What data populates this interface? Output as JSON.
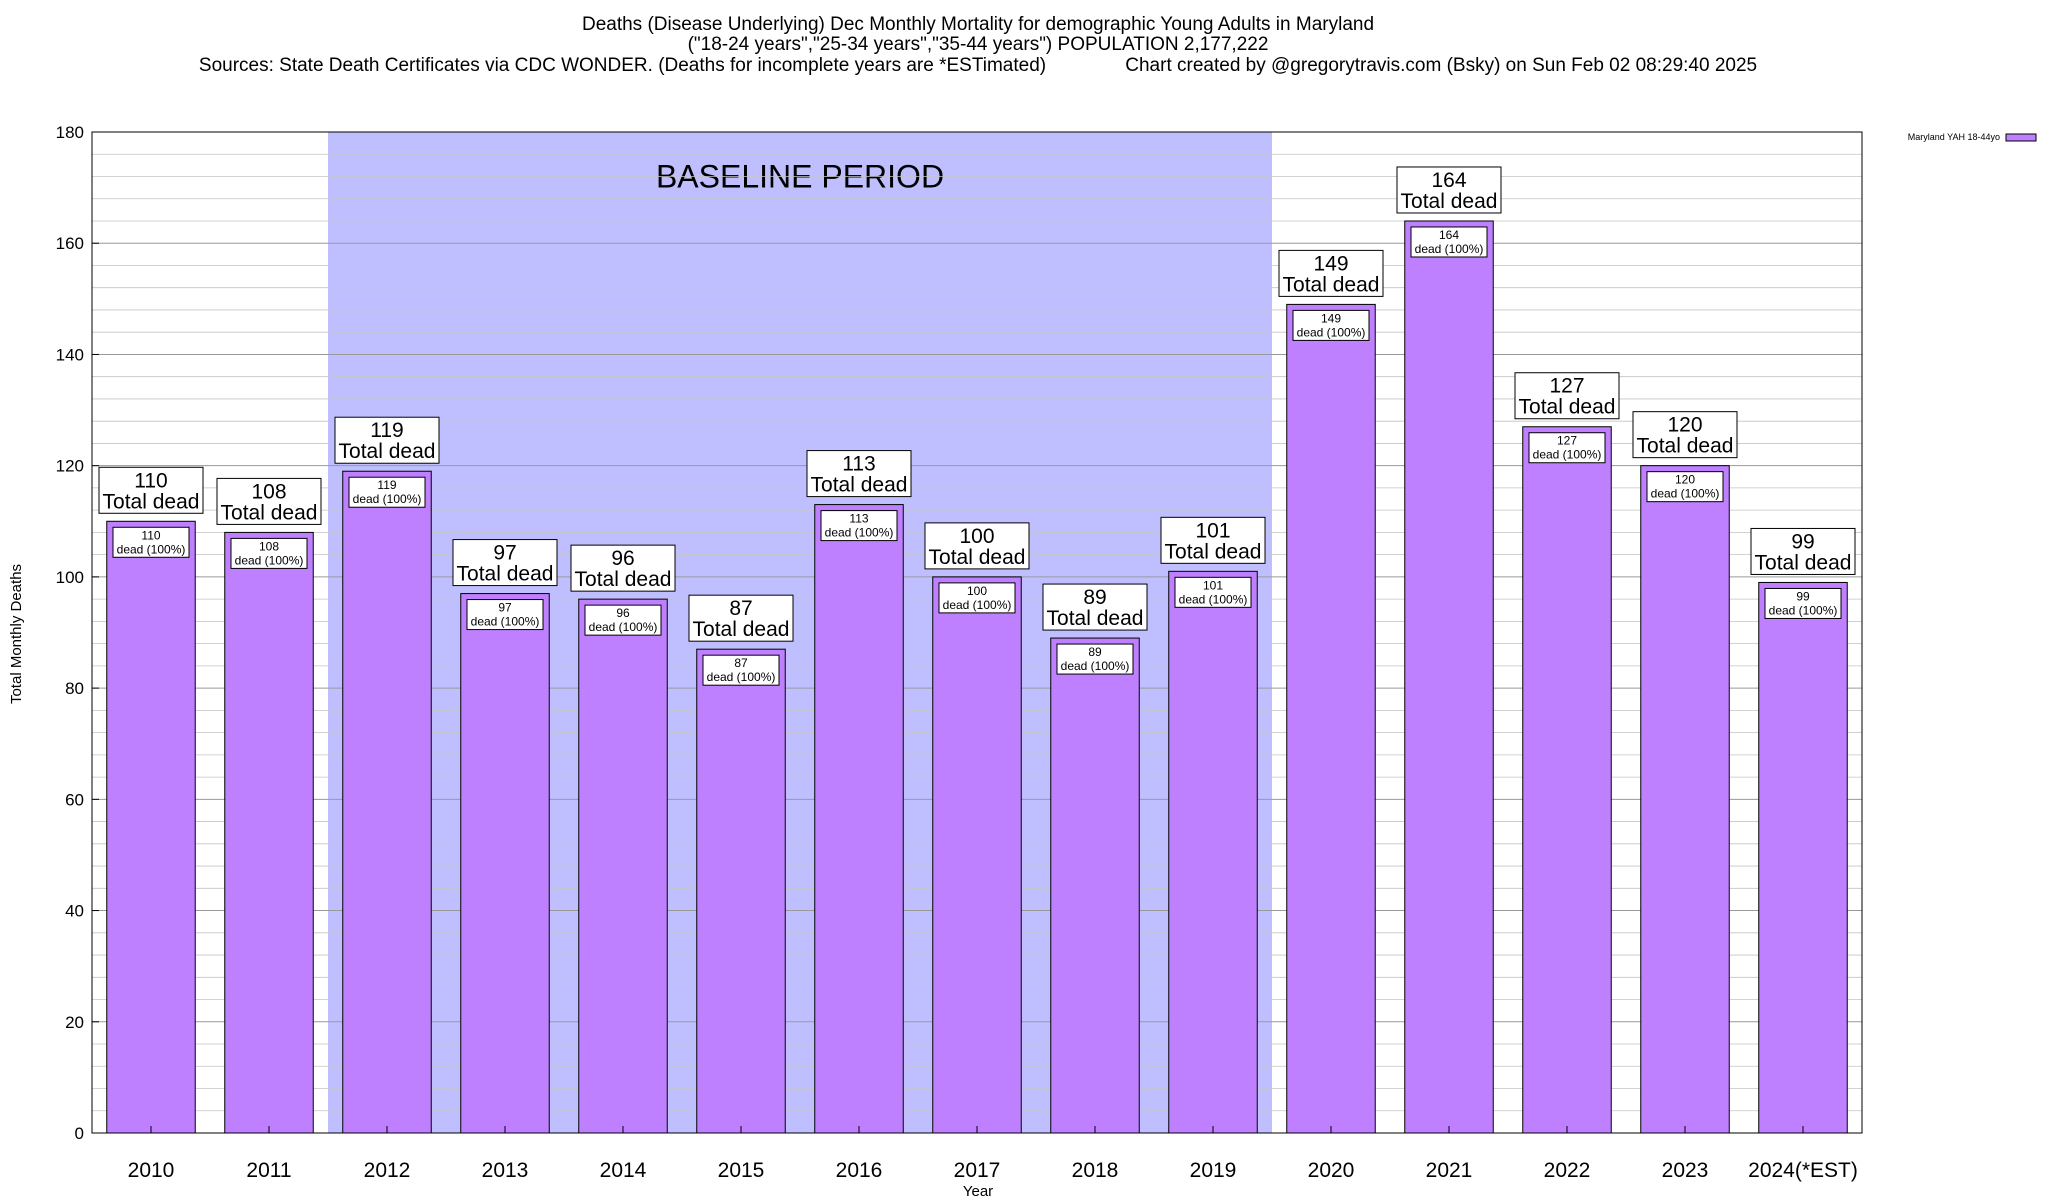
{
  "chart_data": {
    "type": "bar",
    "title_lines": [
      "Deaths (Disease Underlying) Dec Monthly Mortality for demographic Young Adults in Maryland",
      "(\"18-24 years\",\"25-34 years\",\"35-44 years\") POPULATION 2,177,222",
      "Sources: State Death Certificates via CDC WONDER. (Deaths for incomplete years are *ESTimated)               Chart created by @gregorytravis.com (Bsky) on Sun Feb 02 08:29:40 2025"
    ],
    "xlabel": "Year",
    "ylabel": "Total Monthly Deaths",
    "ylim": [
      0,
      180
    ],
    "y_ticks": [
      0,
      20,
      40,
      60,
      80,
      100,
      120,
      140,
      160,
      180
    ],
    "categories": [
      "2010",
      "2011",
      "2012",
      "2013",
      "2014",
      "2015",
      "2016",
      "2017",
      "2018",
      "2019",
      "2020",
      "2021",
      "2022",
      "2023",
      "2024(*EST)"
    ],
    "series": [
      {
        "name": "Maryland YAH 18-44yo",
        "color": "#bf80ff",
        "values": [
          110,
          108,
          119,
          97,
          96,
          87,
          113,
          100,
          89,
          101,
          149,
          164,
          127,
          120,
          99
        ]
      }
    ],
    "top_label_suffix": "Total dead",
    "inner_label_suffix": "dead (100%)",
    "baseline_period": {
      "label": "BASELINE PERIOD",
      "start": "2012",
      "end": "2019",
      "color": "#bfbfff"
    },
    "legend_position": "top-right",
    "grid": true
  }
}
